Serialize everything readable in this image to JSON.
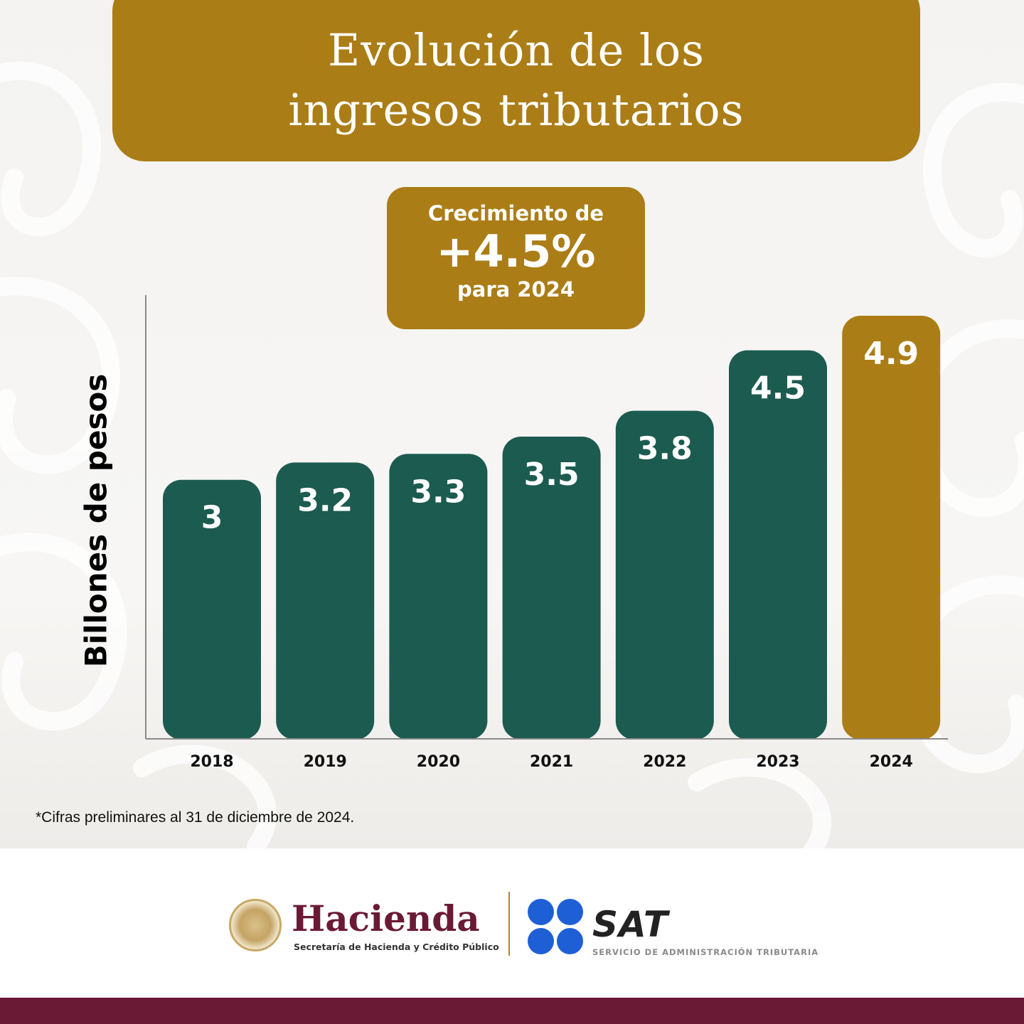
{
  "header": {
    "title_line1": "Evolución de los",
    "title_line2": "ingresos tributarios"
  },
  "highlight": {
    "line1": "Crecimiento de",
    "value": "+4.5%",
    "line3": "para 2024"
  },
  "footnote": "*Cifras preliminares al 31 de diciembre de 2024.",
  "footer": {
    "hacienda_name": "Hacienda",
    "hacienda_sub": "Secretaría de Hacienda y Crédito Público",
    "sat_name": "SAT",
    "sat_sub": "SERVICIO DE ADMINISTRACIÓN TRIBUTARIA"
  },
  "colors": {
    "bar_default": "#1c5b50",
    "bar_highlight": "#ab7d16",
    "accent": "#ab7d16",
    "brand_wine": "#6b1a36",
    "sat_blue": "#1f5fd6"
  },
  "chart_data": {
    "type": "bar",
    "title": "Evolución de los ingresos tributarios",
    "ylabel": "Billones de pesos",
    "xlabel": "",
    "categories": [
      "2018",
      "2019",
      "2020",
      "2021",
      "2022",
      "2023",
      "2024"
    ],
    "values": [
      3,
      3.2,
      3.3,
      3.5,
      3.8,
      4.5,
      4.9
    ],
    "value_labels": [
      "3",
      "3.2",
      "3.3",
      "3.5",
      "3.8",
      "4.5",
      "4.9"
    ],
    "highlight_index": 6,
    "ylim": [
      0,
      5
    ],
    "grid": false,
    "legend": "none"
  }
}
